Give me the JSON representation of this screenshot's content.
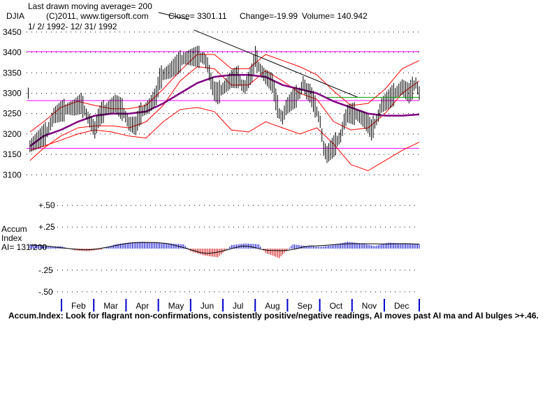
{
  "header": {
    "note": "Last drawn moving average= 200",
    "symbol": "DJIA",
    "copyright": "(C)2011, www.tigersoft.com",
    "close": "Close=  3301.11",
    "change": "Change=-19.99",
    "volume": "Volume= 140.942",
    "dates": "1/ 2/ 1992- 12/ 31/ 1992"
  },
  "accum_panel": {
    "title": "Accum",
    "title2": "Index",
    "ai_label": "AI= 131/200",
    "footer": "Accum.Index: Look for flagrant non-confirmations, consistently positive/negative readings, AI moves past AI ma and AI bulges >+.46."
  },
  "colors": {
    "price": "#000000",
    "band": "#ff0000",
    "ma200": "#800080",
    "horizontal": "#ff00ff",
    "accum_pos": "#0000cc",
    "accum_neg": "#cc0000",
    "grid": "#000000",
    "month_tick": "#0000cc",
    "green": "#00a000"
  },
  "chart_data": [
    {
      "type": "line",
      "title": "DJIA",
      "ylim": [
        3080,
        3460
      ],
      "y_ticks": [
        "3450",
        "3400",
        "3350",
        "3300",
        "3250",
        "3200",
        "3150",
        "3100"
      ],
      "months": [
        "Feb",
        "Mar",
        "Apr",
        "May",
        "Jun",
        "Jul",
        "Aug",
        "Sep",
        "Oct",
        "Nov",
        "Dec"
      ],
      "horizontal_lines": [
        3402,
        3282,
        3165
      ],
      "series": [
        {
          "values": [
            [
              1,
              3170
            ],
            [
              4,
              3190
            ],
            [
              6,
              3205
            ],
            [
              8,
              3245
            ],
            [
              10,
              3255
            ],
            [
              12,
              3262
            ],
            [
              14,
              3265
            ],
            [
              16,
              3275
            ],
            [
              18,
              3240
            ],
            [
              20,
              3210
            ],
            [
              21,
              3238
            ],
            [
              22,
              3252
            ],
            [
              24,
              3265
            ],
            [
              26,
              3275
            ],
            [
              28,
              3260
            ],
            [
              30,
              3225
            ],
            [
              32,
              3220
            ],
            [
              33,
              3245
            ],
            [
              34,
              3255
            ],
            [
              36,
              3270
            ],
            [
              38,
              3295
            ],
            [
              39,
              3335
            ],
            [
              40,
              3345
            ],
            [
              42,
              3355
            ],
            [
              44,
              3370
            ],
            [
              46,
              3385
            ],
            [
              48,
              3388
            ],
            [
              50,
              3390
            ],
            [
              52,
              3385
            ],
            [
              53,
              3370
            ],
            [
              54,
              3330
            ],
            [
              55,
              3305
            ],
            [
              56,
              3300
            ],
            [
              58,
              3315
            ],
            [
              60,
              3335
            ],
            [
              62,
              3340
            ],
            [
              63,
              3320
            ],
            [
              64,
              3315
            ],
            [
              66,
              3350
            ],
            [
              67,
              3390
            ],
            [
              68,
              3365
            ],
            [
              70,
              3340
            ],
            [
              72,
              3325
            ],
            [
              73,
              3285
            ],
            [
              74,
              3250
            ],
            [
              75,
              3240
            ],
            [
              76,
              3265
            ],
            [
              78,
              3285
            ],
            [
              80,
              3300
            ],
            [
              81,
              3325
            ],
            [
              82,
              3305
            ],
            [
              83,
              3300
            ],
            [
              84,
              3280
            ],
            [
              86,
              3230
            ],
            [
              87,
              3165
            ],
            [
              88,
              3150
            ],
            [
              90,
              3170
            ],
            [
              92,
              3195
            ],
            [
              93,
              3230
            ],
            [
              94,
              3250
            ],
            [
              96,
              3250
            ],
            [
              98,
              3240
            ],
            [
              100,
              3225
            ],
            [
              101,
              3210
            ],
            [
              102,
              3225
            ],
            [
              103,
              3245
            ],
            [
              104,
              3270
            ],
            [
              106,
              3285
            ],
            [
              108,
              3300
            ],
            [
              110,
              3315
            ],
            [
              112,
              3300
            ],
            [
              114,
              3325
            ],
            [
              115,
              3300
            ]
          ]
        },
        {
          "values": [
            [
              1,
              3170
            ],
            [
              5,
              3195
            ],
            [
              10,
              3210
            ],
            [
              15,
              3230
            ],
            [
              20,
              3245
            ],
            [
              25,
              3250
            ],
            [
              30,
              3250
            ],
            [
              35,
              3255
            ],
            [
              40,
              3275
            ],
            [
              45,
              3300
            ],
            [
              50,
              3325
            ],
            [
              55,
              3340
            ],
            [
              60,
              3345
            ],
            [
              65,
              3345
            ],
            [
              70,
              3340
            ],
            [
              75,
              3320
            ],
            [
              80,
              3310
            ],
            [
              85,
              3300
            ],
            [
              90,
              3280
            ],
            [
              95,
              3265
            ],
            [
              100,
              3250
            ],
            [
              105,
              3245
            ],
            [
              110,
              3245
            ],
            [
              115,
              3248
            ]
          ]
        },
        {
          "values": [
            [
              1,
              3205
            ],
            [
              5,
              3230
            ],
            [
              10,
              3265
            ],
            [
              15,
              3280
            ],
            [
              20,
              3270
            ],
            [
              25,
              3262
            ],
            [
              30,
              3262
            ],
            [
              35,
              3270
            ],
            [
              40,
              3310
            ],
            [
              45,
              3355
            ],
            [
              50,
              3395
            ],
            [
              55,
              3395
            ],
            [
              60,
              3360
            ],
            [
              65,
              3360
            ],
            [
              70,
              3395
            ],
            [
              75,
              3380
            ],
            [
              80,
              3365
            ],
            [
              85,
              3345
            ],
            [
              90,
              3305
            ],
            [
              95,
              3270
            ],
            [
              100,
              3275
            ],
            [
              105,
              3310
            ],
            [
              110,
              3360
            ],
            [
              115,
              3380
            ]
          ]
        },
        {
          "values": [
            [
              1,
              3135
            ],
            [
              5,
              3165
            ],
            [
              10,
              3195
            ],
            [
              15,
              3215
            ],
            [
              20,
              3220
            ],
            [
              25,
              3220
            ],
            [
              30,
              3215
            ],
            [
              35,
              3230
            ],
            [
              40,
              3270
            ],
            [
              45,
              3330
            ],
            [
              50,
              3365
            ],
            [
              55,
              3360
            ],
            [
              60,
              3320
            ],
            [
              65,
              3320
            ],
            [
              70,
              3355
            ],
            [
              75,
              3330
            ],
            [
              80,
              3300
            ],
            [
              85,
              3285
            ],
            [
              90,
              3230
            ],
            [
              95,
              3210
            ],
            [
              100,
              3215
            ],
            [
              105,
              3250
            ],
            [
              110,
              3300
            ],
            [
              115,
              3330
            ]
          ]
        },
        {
          "values": [
            [
              1,
              3160
            ],
            [
              5,
              3170
            ],
            [
              10,
              3185
            ],
            [
              15,
              3200
            ],
            [
              20,
              3210
            ],
            [
              25,
              3205
            ],
            [
              30,
              3195
            ],
            [
              35,
              3190
            ],
            [
              40,
              3230
            ],
            [
              45,
              3260
            ],
            [
              50,
              3265
            ],
            [
              55,
              3255
            ],
            [
              60,
              3210
            ],
            [
              65,
              3205
            ],
            [
              70,
              3230
            ],
            [
              75,
              3215
            ],
            [
              80,
              3200
            ],
            [
              85,
              3215
            ],
            [
              90,
              3175
            ],
            [
              95,
              3125
            ],
            [
              100,
              3110
            ],
            [
              105,
              3135
            ],
            [
              110,
              3160
            ],
            [
              115,
              3180
            ]
          ]
        }
      ]
    },
    {
      "type": "bar",
      "title": "Accum Index",
      "ylim": [
        -0.55,
        0.55
      ],
      "y_ticks": [
        "+.50",
        "+.25",
        "-.25",
        "-.50"
      ],
      "series": [
        {
          "values": [
            [
              1,
              0.05
            ],
            [
              6,
              0.02
            ],
            [
              10,
              0.03
            ],
            [
              14,
              -0.02
            ],
            [
              18,
              -0.03
            ],
            [
              22,
              -0.01
            ],
            [
              26,
              0.05
            ],
            [
              30,
              0.07
            ],
            [
              34,
              0.08
            ],
            [
              38,
              0.07
            ],
            [
              42,
              0.06
            ],
            [
              46,
              0.05
            ],
            [
              48,
              -0.03
            ],
            [
              52,
              -0.08
            ],
            [
              56,
              -0.1
            ],
            [
              60,
              0.04
            ],
            [
              64,
              0.06
            ],
            [
              68,
              0.05
            ],
            [
              70,
              -0.05
            ],
            [
              74,
              -0.11
            ],
            [
              78,
              0.05
            ],
            [
              82,
              0.03
            ],
            [
              86,
              0.02
            ],
            [
              90,
              0.04
            ],
            [
              94,
              0.08
            ],
            [
              98,
              0.06
            ],
            [
              102,
              0.03
            ],
            [
              106,
              0.07
            ],
            [
              110,
              0.06
            ],
            [
              114,
              0.05
            ]
          ]
        }
      ]
    }
  ]
}
